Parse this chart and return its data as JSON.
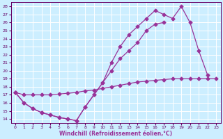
{
  "xlabel": "Windchill (Refroidissement éolien,°C)",
  "xlim": [
    -0.5,
    23.5
  ],
  "ylim": [
    13.5,
    28.5
  ],
  "xticks": [
    0,
    1,
    2,
    3,
    4,
    5,
    6,
    7,
    8,
    9,
    10,
    11,
    12,
    13,
    14,
    15,
    16,
    17,
    18,
    19,
    20,
    21,
    22,
    23
  ],
  "yticks": [
    14,
    15,
    16,
    17,
    18,
    19,
    20,
    21,
    22,
    23,
    24,
    25,
    26,
    27,
    28
  ],
  "bg_color": "#cceeff",
  "line_color": "#993399",
  "grid_color": "#ffffff",
  "marker": "D",
  "markersize": 2.5,
  "linewidth": 0.9,
  "line1_x": [
    0,
    1,
    2,
    3,
    4,
    5,
    6,
    7,
    8,
    9,
    10,
    11,
    12,
    13,
    14,
    15,
    16,
    17,
    18,
    19,
    20,
    21,
    22,
    23
  ],
  "line1_y": [
    17.3,
    17.0,
    17.0,
    17.0,
    17.0,
    17.1,
    17.2,
    17.3,
    17.5,
    17.6,
    17.8,
    18.0,
    18.2,
    18.4,
    18.6,
    18.7,
    18.8,
    18.9,
    19.0,
    19.0,
    19.0,
    19.0,
    19.0,
    19.0
  ],
  "line2_x": [
    0,
    1,
    2,
    3,
    4,
    5,
    6,
    7,
    8,
    9,
    10,
    11,
    12,
    13,
    14,
    15,
    16,
    17,
    18,
    19,
    20,
    21,
    22,
    23
  ],
  "line2_y": [
    17.3,
    16.0,
    15.3,
    14.8,
    14.5,
    14.2,
    14.0,
    13.8,
    15.5,
    17.0,
    18.5,
    20.0,
    21.5,
    22.5,
    23.5,
    25.0,
    25.8,
    26.0,
    null,
    null,
    null,
    null,
    null,
    null
  ],
  "line3_x": [
    0,
    1,
    2,
    3,
    4,
    5,
    6,
    7,
    8,
    9,
    10,
    11,
    12,
    13,
    14,
    15,
    16,
    17,
    18,
    19,
    20,
    21,
    22,
    23
  ],
  "line3_y": [
    17.3,
    16.0,
    15.3,
    14.8,
    14.5,
    14.2,
    14.0,
    13.8,
    15.5,
    17.0,
    18.5,
    21.0,
    23.0,
    24.5,
    25.5,
    26.5,
    27.5,
    27.0,
    26.5,
    28.0,
    26.0,
    22.5,
    19.5,
    null
  ]
}
